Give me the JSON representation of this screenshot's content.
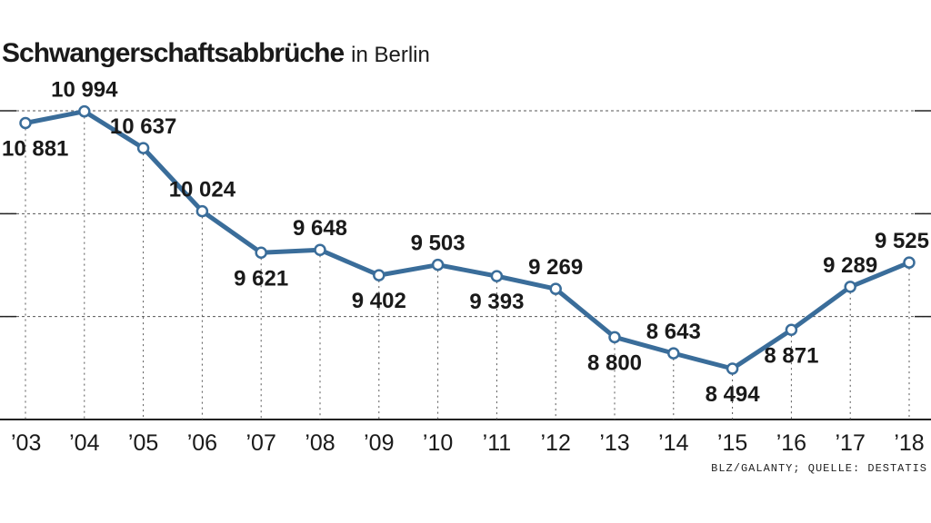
{
  "chart_data": {
    "type": "line",
    "title": "Schwangerschaftsabbrüche",
    "subtitle": "in Berlin",
    "categories": [
      "’03",
      "’04",
      "’05",
      "’06",
      "’07",
      "’08",
      "’09",
      "’10",
      "’11",
      "’12",
      "’13",
      "’14",
      "’15",
      "’16",
      "’17",
      "’18"
    ],
    "values": [
      10881,
      10994,
      10637,
      10024,
      9621,
      9648,
      9402,
      9503,
      9393,
      9269,
      8800,
      8643,
      8494,
      8871,
      9289,
      9525
    ],
    "value_labels": [
      "10 881",
      "10 994",
      "10 637",
      "10 024",
      "9 621",
      "9 648",
      "9 402",
      "9 503",
      "9 393",
      "9 269",
      "8 800",
      "8 643",
      "8 494",
      "8 871",
      "9 289",
      "9 525"
    ],
    "label_positions": [
      "below",
      "above",
      "above",
      "above",
      "below",
      "above",
      "below",
      "above",
      "below",
      "above",
      "below",
      "above",
      "below",
      "below",
      "above",
      "above"
    ],
    "ylim": [
      8000,
      11000
    ],
    "grid": true,
    "line_color": "#3a6d9a",
    "source": "BLZ/GALANTY; QUELLE: DESTATIS"
  }
}
